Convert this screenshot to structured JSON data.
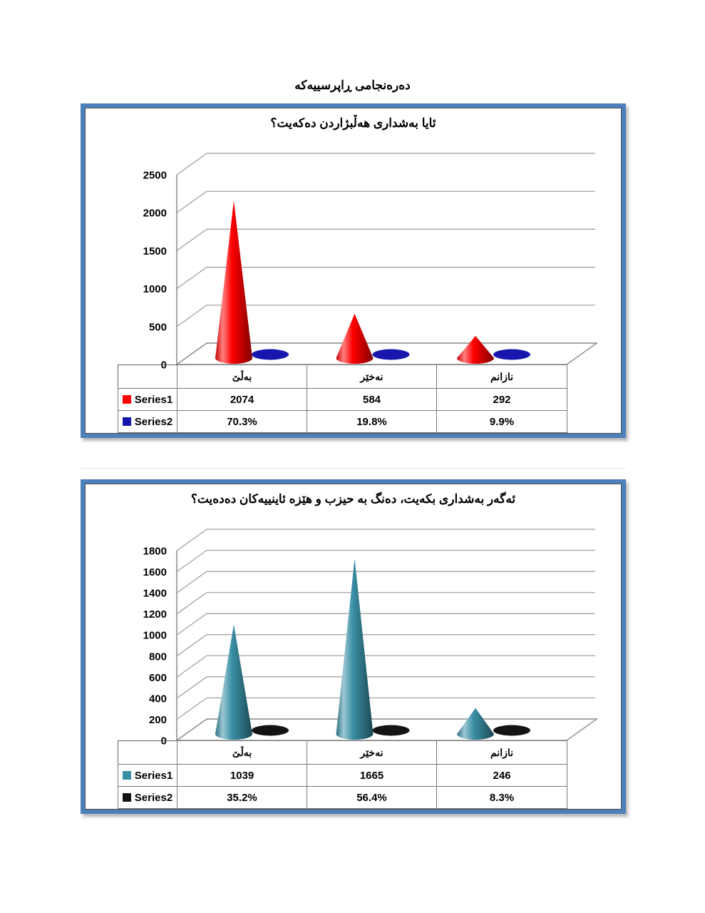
{
  "page": {
    "title": "دەرەنجامی ڕاپرسییەکە",
    "background": "#ffffff",
    "frame_border_color": "#4d80ba"
  },
  "chart_data": [
    {
      "type": "bar",
      "subtype": "3d-cone",
      "title": "ئایا بەشداری هەڵبژاردن دەکەیت؟",
      "categories": [
        "بەڵێ",
        "نەخێر",
        "نازانم"
      ],
      "series": [
        {
          "name": "Series1",
          "shape": "cone",
          "color": "#ff0000",
          "values": [
            2074,
            584,
            292
          ],
          "labels": [
            "2074",
            "584",
            "292"
          ]
        },
        {
          "name": "Series2",
          "shape": "ellipse",
          "color": "#1717ae",
          "values": [
            70.3,
            19.8,
            9.9
          ],
          "labels": [
            "70.3%",
            "19.8%",
            "9.9%"
          ]
        }
      ],
      "ylim": [
        0,
        2500
      ],
      "ytick_step": 500,
      "grid": true,
      "legend_position": "data-table-left"
    },
    {
      "type": "bar",
      "subtype": "3d-cone",
      "title": "ئەگەر بەشداری بکەیت، دەنگ بە حیزب و هێزە ئاینییەکان دەدەیت؟",
      "categories": [
        "بەڵێ",
        "نەخێر",
        "نازانم"
      ],
      "series": [
        {
          "name": "Series1",
          "shape": "cone",
          "color": "#3a8fa5",
          "values": [
            1039,
            1665,
            246
          ],
          "labels": [
            "1039",
            "1665",
            "246"
          ]
        },
        {
          "name": "Series2",
          "shape": "ellipse",
          "color": "#131313",
          "values": [
            35.2,
            56.4,
            8.3
          ],
          "labels": [
            "35.2%",
            "56.4%",
            "8.3%"
          ]
        }
      ],
      "ylim": [
        0,
        1800
      ],
      "ytick_step": 200,
      "grid": true,
      "legend_position": "data-table-left"
    }
  ]
}
